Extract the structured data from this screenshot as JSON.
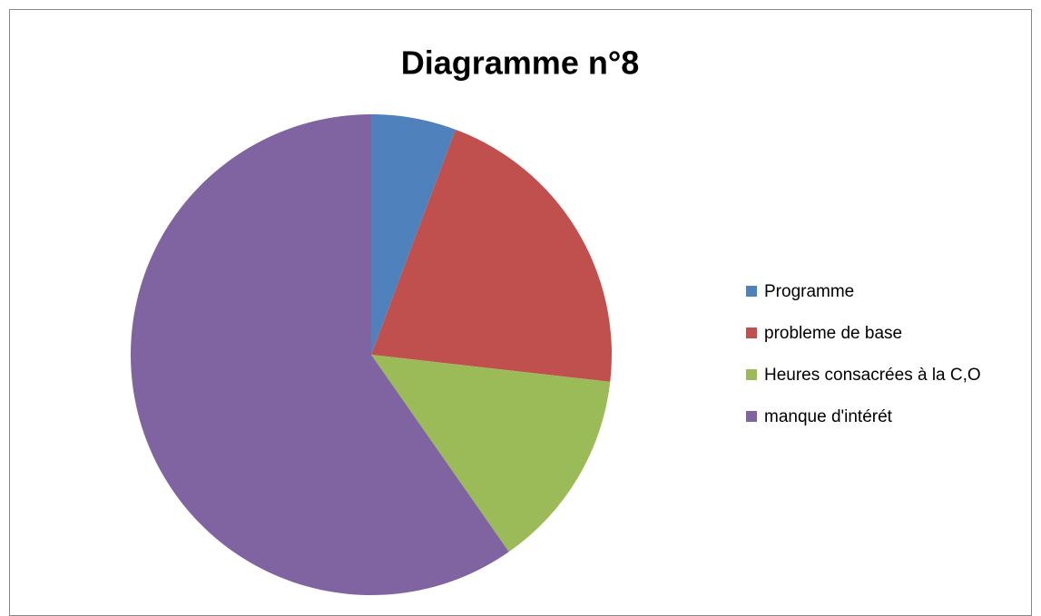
{
  "chart_data": {
    "type": "pie",
    "title": "Diagramme n°8",
    "categories": [
      "Programme",
      "probleme de base",
      "Heures consacrées à la C,O",
      "manque d'intérét"
    ],
    "values": [
      5.7,
      21.1,
      13.5,
      59.7
    ],
    "colors": [
      "#4f81bd",
      "#c0504d",
      "#9bbb59",
      "#8064a2"
    ],
    "legend": "right"
  }
}
